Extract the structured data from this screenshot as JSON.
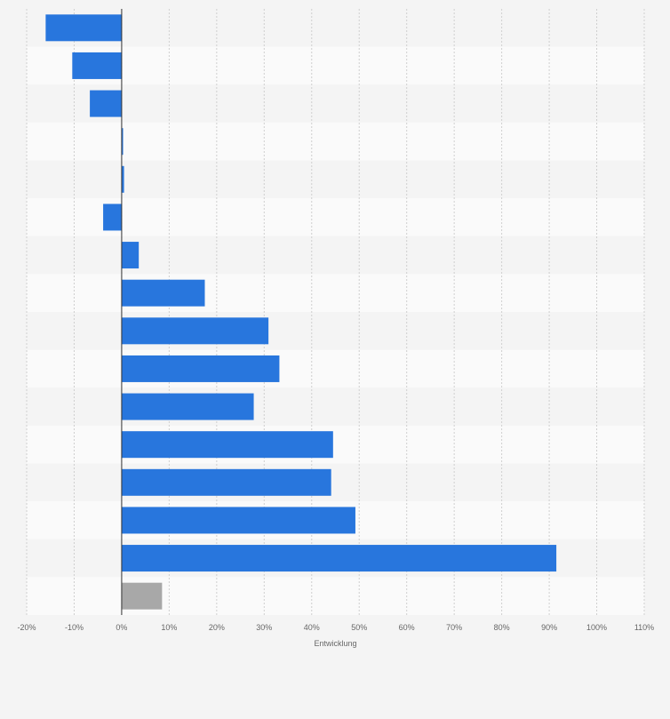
{
  "chart_data": {
    "type": "bar",
    "orientation": "horizontal",
    "title": "",
    "xlabel": "Entwicklung",
    "ylabel": "",
    "xlim": [
      -20,
      110
    ],
    "x_ticks": [
      "-20%",
      "-10%",
      "0%",
      "10%",
      "20%",
      "30%",
      "40%",
      "50%",
      "60%",
      "70%",
      "80%",
      "90%",
      "100%",
      "110%"
    ],
    "x_tick_values": [
      -20,
      -10,
      0,
      10,
      20,
      30,
      40,
      50,
      60,
      70,
      80,
      90,
      100,
      110
    ],
    "categories": [
      "",
      "",
      "",
      "",
      "",
      "",
      "",
      "",
      "",
      "",
      "",
      "",
      "",
      "",
      "",
      ""
    ],
    "values": [
      -16.0,
      -10.4,
      -6.7,
      0.3,
      0.5,
      -3.9,
      3.6,
      17.5,
      30.9,
      33.2,
      27.8,
      44.5,
      44.1,
      49.2,
      91.5,
      8.5
    ],
    "bar_colors": [
      "#2876dd",
      "#2876dd",
      "#2876dd",
      "#2876dd",
      "#2876dd",
      "#2876dd",
      "#2876dd",
      "#2876dd",
      "#2876dd",
      "#2876dd",
      "#2876dd",
      "#2876dd",
      "#2876dd",
      "#2876dd",
      "#2876dd",
      "#a8a8a8"
    ],
    "grid": true,
    "legend": "none"
  },
  "colors": {
    "bar": "#2876dd",
    "bar_highlight": "#a8a8a8",
    "row_even": "#f4f4f4",
    "row_odd": "#fafafa",
    "grid": "#cfcfcf",
    "zero_line": "#333333"
  }
}
